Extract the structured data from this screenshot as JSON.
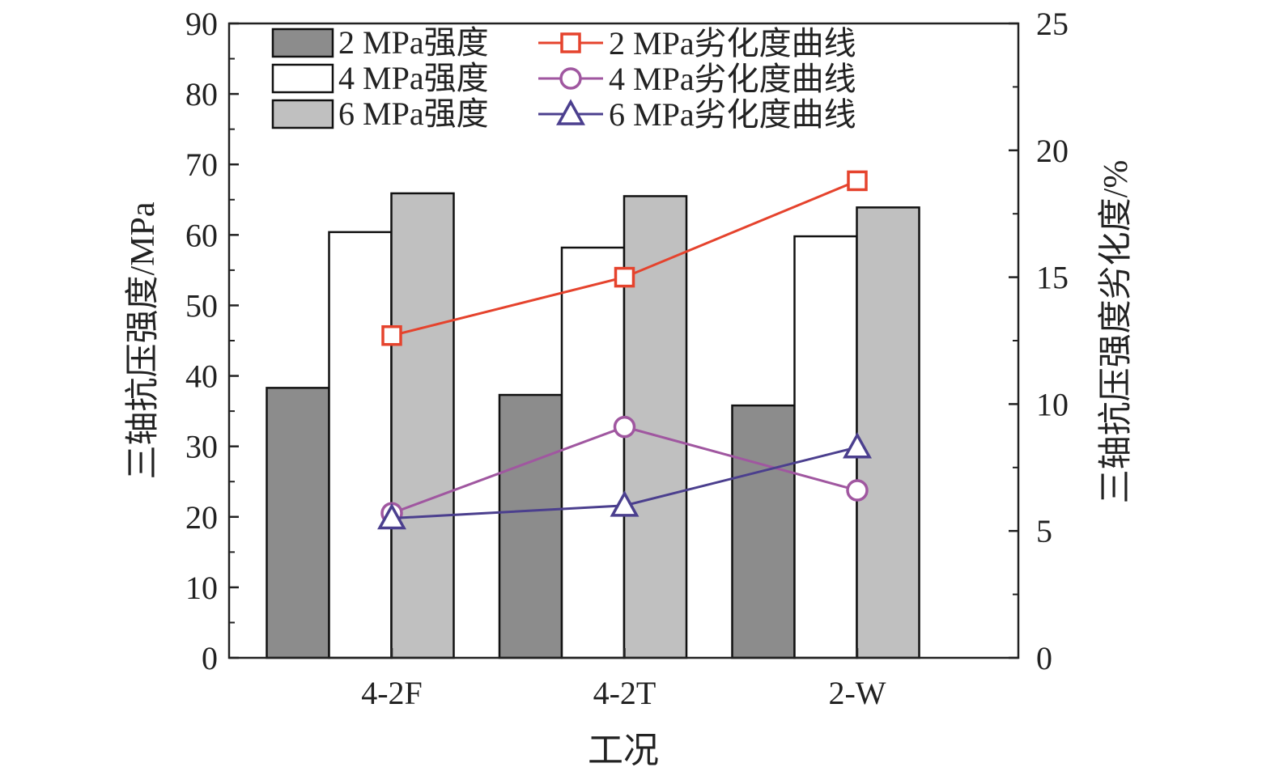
{
  "chart_data": {
    "type": "bar",
    "xlabel": "工况",
    "ylabel": "三轴抗压强度/MPa",
    "y2label": "三轴抗压强度劣化度/%",
    "categories": [
      "4-2F",
      "4-2T",
      "2-W"
    ],
    "ylim": [
      0,
      90
    ],
    "yticks": [
      0,
      10,
      20,
      30,
      40,
      50,
      60,
      70,
      80,
      90
    ],
    "y2lim": [
      0,
      25
    ],
    "y2ticks": [
      0,
      5,
      10,
      15,
      20,
      25
    ],
    "legend_position": "top",
    "bar_series": [
      {
        "name": "2 MPa强度",
        "values": [
          38.3,
          37.3,
          35.8
        ],
        "color": "#8c8c8c"
      },
      {
        "name": "4 MPa强度",
        "values": [
          60.4,
          58.2,
          59.8
        ],
        "color": "#ffffff"
      },
      {
        "name": "6 MPa强度",
        "values": [
          65.9,
          65.5,
          63.9
        ],
        "color": "#c0c0c0"
      }
    ],
    "line_series": [
      {
        "name": "2 MPa劣化度曲线",
        "values": [
          12.7,
          15.0,
          18.8
        ],
        "color": "#e5432d",
        "marker": "square",
        "axis": "right"
      },
      {
        "name": "4 MPa劣化度曲线",
        "values": [
          5.7,
          9.1,
          6.6
        ],
        "color": "#a057a0",
        "marker": "circle",
        "axis": "right"
      },
      {
        "name": "6 MPa劣化度曲线",
        "values": [
          5.5,
          6.0,
          8.3
        ],
        "color": "#4b3f8e",
        "marker": "triangle",
        "axis": "right"
      }
    ]
  }
}
